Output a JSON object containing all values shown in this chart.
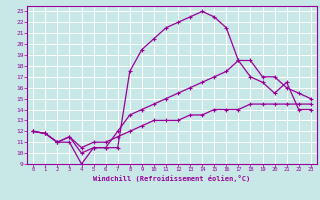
{
  "xlabel": "Windchill (Refroidissement éolien,°C)",
  "xlim": [
    -0.5,
    23.5
  ],
  "ylim": [
    9,
    23.5
  ],
  "xticks": [
    0,
    1,
    2,
    3,
    4,
    5,
    6,
    7,
    8,
    9,
    10,
    11,
    12,
    13,
    14,
    15,
    16,
    17,
    18,
    19,
    20,
    21,
    22,
    23
  ],
  "yticks": [
    9,
    10,
    11,
    12,
    13,
    14,
    15,
    16,
    17,
    18,
    19,
    20,
    21,
    22,
    23
  ],
  "line_color": "#990099",
  "bg_color": "#c8e8e8",
  "grid_color": "#ffffff",
  "line1_x": [
    0,
    1,
    2,
    3,
    4,
    5,
    6,
    7,
    8,
    9,
    10,
    11,
    12,
    13,
    14,
    15,
    16,
    17,
    18,
    19,
    20,
    21,
    22,
    23
  ],
  "line1_y": [
    12.0,
    11.8,
    11.0,
    11.0,
    9.0,
    10.5,
    10.5,
    10.5,
    17.5,
    19.5,
    20.5,
    21.5,
    22.0,
    22.5,
    23.0,
    22.5,
    21.5,
    18.5,
    17.0,
    16.5,
    15.5,
    16.5,
    14.0,
    14.0
  ],
  "line2_x": [
    0,
    1,
    2,
    3,
    4,
    5,
    6,
    7,
    8,
    9,
    10,
    11,
    12,
    13,
    14,
    15,
    16,
    17,
    18,
    19,
    20,
    21,
    22,
    23
  ],
  "line2_y": [
    12.0,
    11.8,
    11.0,
    11.5,
    10.0,
    10.5,
    10.5,
    12.0,
    13.5,
    14.0,
    14.5,
    15.0,
    15.5,
    16.0,
    16.5,
    17.0,
    17.5,
    18.5,
    18.5,
    17.0,
    17.0,
    16.0,
    15.5,
    15.0
  ],
  "line3_x": [
    0,
    1,
    2,
    3,
    4,
    5,
    6,
    7,
    8,
    9,
    10,
    11,
    12,
    13,
    14,
    15,
    16,
    17,
    18,
    19,
    20,
    21,
    22,
    23
  ],
  "line3_y": [
    12.0,
    11.8,
    11.0,
    11.5,
    10.5,
    11.0,
    11.0,
    11.5,
    12.0,
    12.5,
    13.0,
    13.0,
    13.0,
    13.5,
    13.5,
    14.0,
    14.0,
    14.0,
    14.5,
    14.5,
    14.5,
    14.5,
    14.5,
    14.5
  ]
}
